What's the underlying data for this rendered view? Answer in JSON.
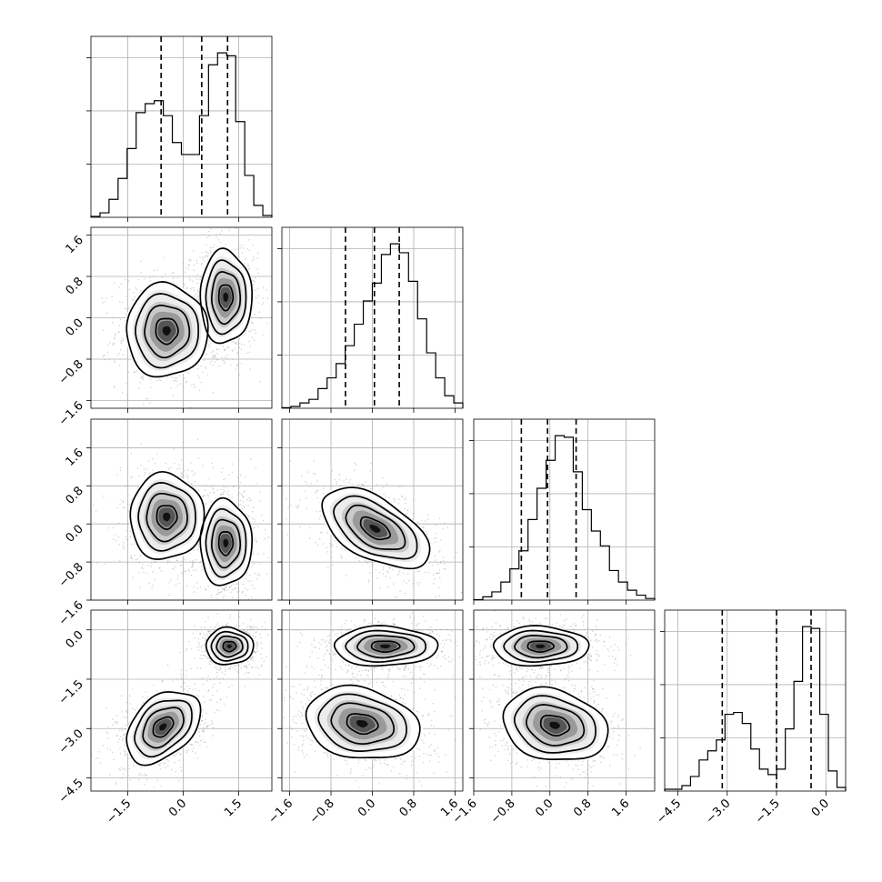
{
  "chart_data": {
    "type": "corner",
    "title": "",
    "parameters": [
      "",
      "",
      "",
      ""
    ],
    "grid": true,
    "axis_ticks": [
      {
        "values": [
          -1.5,
          0.0,
          1.5
        ],
        "labels": [
          "−1.5",
          "0.0",
          "1.5"
        ],
        "range": [
          -2.5,
          2.4
        ]
      },
      {
        "values": [
          -1.6,
          -0.8,
          0.0,
          0.8,
          1.6
        ],
        "labels": [
          "−1.6",
          "−0.8",
          "0.0",
          "0.8",
          "1.6"
        ],
        "range": [
          -1.75,
          1.75
        ]
      },
      {
        "values": [
          -1.6,
          -0.8,
          0.0,
          0.8,
          1.6
        ],
        "labels": [
          "−1.6",
          "−0.8",
          "0.0",
          "0.8",
          "1.6"
        ],
        "range": [
          -1.6,
          2.2
        ]
      },
      {
        "values": [
          -4.5,
          -3.0,
          -1.5,
          0.0
        ],
        "labels": [
          "−4.5",
          "−3.0",
          "−1.5",
          "0.0"
        ],
        "range": [
          -4.9,
          0.6
        ]
      }
    ],
    "histograms": [
      {
        "param": 0,
        "bin_edges_range": [
          -2.5,
          2.4
        ],
        "counts": [
          0.3,
          1.5,
          6,
          13,
          23,
          35,
          38,
          39,
          34,
          25,
          21,
          21,
          34,
          51,
          55,
          54,
          32,
          14,
          4,
          0.6
        ],
        "quantiles": [
          -0.6,
          0.5,
          1.2
        ]
      },
      {
        "param": 1,
        "bin_edges_range": [
          -1.75,
          1.75
        ],
        "counts": [
          0.3,
          1,
          3,
          5,
          11,
          17,
          25,
          35,
          47,
          60,
          70,
          86,
          92,
          87,
          71,
          50,
          31,
          17,
          7,
          3
        ],
        "quantiles": [
          -0.52,
          0.04,
          0.52
        ]
      },
      {
        "param": 2,
        "bin_edges_range": [
          -1.6,
          2.2
        ],
        "counts": [
          0.3,
          2,
          5,
          11,
          19,
          30,
          49,
          68,
          85,
          100,
          99,
          78,
          55,
          42,
          33,
          18,
          11,
          6,
          3,
          1
        ],
        "quantiles": [
          -0.6,
          -0.05,
          0.55
        ]
      },
      {
        "param": 3,
        "bin_edges_range": [
          -4.9,
          0.6
        ],
        "counts": [
          1,
          1,
          3,
          8,
          17,
          22,
          28,
          42,
          43,
          37,
          23,
          12,
          9,
          12,
          34,
          60,
          90,
          89,
          42,
          11,
          2
        ],
        "quantiles": [
          -3.15,
          -1.5,
          -0.45
        ]
      }
    ],
    "scatter_panels": [
      {
        "x_param": 0,
        "y_param": 1,
        "clusters": [
          {
            "center": [
              -0.45,
              -0.25
            ],
            "sigma": [
              0.55,
              0.45
            ],
            "rho": 0.0
          },
          {
            "center": [
              1.15,
              0.4
            ],
            "sigma": [
              0.35,
              0.45
            ],
            "rho": 0.0
          }
        ]
      },
      {
        "x_param": 0,
        "y_param": 2,
        "clusters": [
          {
            "center": [
              -0.45,
              0.15
            ],
            "sigma": [
              0.5,
              0.45
            ],
            "rho": 0.0
          },
          {
            "center": [
              1.15,
              -0.4
            ],
            "sigma": [
              0.35,
              0.45
            ],
            "rho": 0.0
          }
        ]
      },
      {
        "x_param": 1,
        "y_param": 2,
        "clusters": [
          {
            "center": [
              0.05,
              -0.1
            ],
            "sigma": [
              0.52,
              0.42
            ],
            "rho": -0.55
          }
        ]
      },
      {
        "x_param": 0,
        "y_param": 3,
        "clusters": [
          {
            "center": [
              -0.55,
              -2.95
            ],
            "sigma": [
              0.5,
              0.55
            ],
            "rho": 0.4
          },
          {
            "center": [
              1.25,
              -0.5
            ],
            "sigma": [
              0.32,
              0.28
            ],
            "rho": 0.0
          }
        ]
      },
      {
        "x_param": 1,
        "y_param": 3,
        "clusters": [
          {
            "center": [
              -0.2,
              -2.85
            ],
            "sigma": [
              0.55,
              0.55
            ],
            "rho": -0.2
          },
          {
            "center": [
              0.25,
              -0.5
            ],
            "sigma": [
              0.5,
              0.3
            ],
            "rho": 0.0
          }
        ]
      },
      {
        "x_param": 2,
        "y_param": 3,
        "clusters": [
          {
            "center": [
              0.1,
              -2.9
            ],
            "sigma": [
              0.55,
              0.55
            ],
            "rho": -0.2
          },
          {
            "center": [
              -0.2,
              -0.5
            ],
            "sigma": [
              0.5,
              0.3
            ],
            "rho": 0.0
          }
        ]
      }
    ]
  }
}
